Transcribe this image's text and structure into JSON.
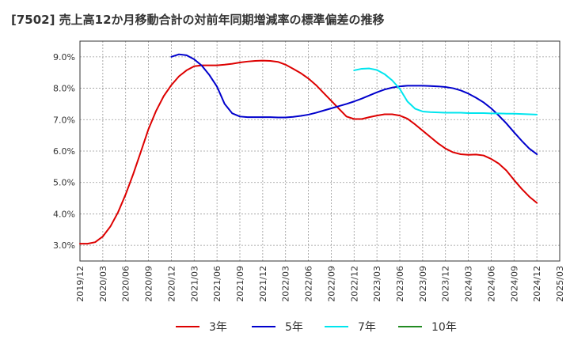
{
  "chart_data": {
    "type": "line",
    "title": "[7502]  売上高12か月移動合計の対前年同期増減率の標準偏差の推移",
    "xlabel": "",
    "ylabel": "",
    "ylim": [
      2.5,
      9.5
    ],
    "y_ticks": [
      "3.0%",
      "4.0%",
      "5.0%",
      "6.0%",
      "7.0%",
      "8.0%",
      "9.0%"
    ],
    "x_ticks": [
      "2019/12",
      "2020/03",
      "2020/06",
      "2020/09",
      "2020/12",
      "2021/03",
      "2021/06",
      "2021/09",
      "2021/12",
      "2022/03",
      "2022/06",
      "2022/09",
      "2022/12",
      "2023/03",
      "2023/06",
      "2023/09",
      "2023/12",
      "2024/03",
      "2024/06",
      "2024/09",
      "2024/12",
      "2025/03"
    ],
    "grid": true,
    "legend_position": "bottom",
    "series": [
      {
        "name": "3年",
        "color": "#dd0000",
        "points": [
          [
            0,
            3.05
          ],
          [
            1,
            3.05
          ],
          [
            2,
            3.1
          ],
          [
            3,
            3.28
          ],
          [
            4,
            3.6
          ],
          [
            5,
            4.05
          ],
          [
            6,
            4.62
          ],
          [
            7,
            5.27
          ],
          [
            8,
            5.98
          ],
          [
            9,
            6.7
          ],
          [
            10,
            7.28
          ],
          [
            11,
            7.75
          ],
          [
            12,
            8.1
          ],
          [
            13,
            8.38
          ],
          [
            14,
            8.57
          ],
          [
            15,
            8.7
          ],
          [
            16,
            8.73
          ],
          [
            17,
            8.73
          ],
          [
            18,
            8.73
          ],
          [
            19,
            8.75
          ],
          [
            20,
            8.78
          ],
          [
            21,
            8.82
          ],
          [
            22,
            8.85
          ],
          [
            23,
            8.87
          ],
          [
            24,
            8.88
          ],
          [
            25,
            8.87
          ],
          [
            26,
            8.84
          ],
          [
            27,
            8.75
          ],
          [
            28,
            8.62
          ],
          [
            29,
            8.48
          ],
          [
            30,
            8.31
          ],
          [
            31,
            8.1
          ],
          [
            32,
            7.85
          ],
          [
            33,
            7.6
          ],
          [
            34,
            7.35
          ],
          [
            35,
            7.1
          ],
          [
            36,
            7.02
          ],
          [
            37,
            7.02
          ],
          [
            38,
            7.08
          ],
          [
            39,
            7.13
          ],
          [
            40,
            7.17
          ],
          [
            41,
            7.17
          ],
          [
            42,
            7.13
          ],
          [
            43,
            7.03
          ],
          [
            44,
            6.85
          ],
          [
            45,
            6.65
          ],
          [
            46,
            6.45
          ],
          [
            47,
            6.25
          ],
          [
            48,
            6.08
          ],
          [
            49,
            5.96
          ],
          [
            50,
            5.9
          ],
          [
            51,
            5.88
          ],
          [
            52,
            5.89
          ],
          [
            53,
            5.86
          ],
          [
            54,
            5.75
          ],
          [
            55,
            5.6
          ],
          [
            56,
            5.38
          ],
          [
            57,
            5.08
          ],
          [
            58,
            4.8
          ],
          [
            59,
            4.55
          ],
          [
            60,
            4.35
          ]
        ]
      },
      {
        "name": "5年",
        "color": "#0000cc",
        "points": [
          [
            12,
            9.0
          ],
          [
            13,
            9.08
          ],
          [
            14,
            9.05
          ],
          [
            15,
            8.92
          ],
          [
            16,
            8.72
          ],
          [
            17,
            8.42
          ],
          [
            18,
            8.05
          ],
          [
            19,
            7.5
          ],
          [
            20,
            7.2
          ],
          [
            21,
            7.1
          ],
          [
            22,
            7.08
          ],
          [
            23,
            7.08
          ],
          [
            24,
            7.08
          ],
          [
            25,
            7.08
          ],
          [
            26,
            7.07
          ],
          [
            27,
            7.07
          ],
          [
            28,
            7.09
          ],
          [
            29,
            7.12
          ],
          [
            30,
            7.16
          ],
          [
            31,
            7.22
          ],
          [
            32,
            7.29
          ],
          [
            33,
            7.36
          ],
          [
            34,
            7.43
          ],
          [
            35,
            7.5
          ],
          [
            36,
            7.58
          ],
          [
            37,
            7.67
          ],
          [
            38,
            7.77
          ],
          [
            39,
            7.87
          ],
          [
            40,
            7.96
          ],
          [
            41,
            8.02
          ],
          [
            42,
            8.06
          ],
          [
            43,
            8.08
          ],
          [
            44,
            8.08
          ],
          [
            45,
            8.08
          ],
          [
            46,
            8.07
          ],
          [
            47,
            8.06
          ],
          [
            48,
            8.04
          ],
          [
            49,
            8.0
          ],
          [
            50,
            7.93
          ],
          [
            51,
            7.83
          ],
          [
            52,
            7.7
          ],
          [
            53,
            7.55
          ],
          [
            54,
            7.36
          ],
          [
            55,
            7.13
          ],
          [
            56,
            6.88
          ],
          [
            57,
            6.6
          ],
          [
            58,
            6.33
          ],
          [
            59,
            6.08
          ],
          [
            60,
            5.9
          ]
        ]
      },
      {
        "name": "7年",
        "color": "#00e5ee",
        "points": [
          [
            36,
            8.57
          ],
          [
            37,
            8.62
          ],
          [
            38,
            8.63
          ],
          [
            39,
            8.58
          ],
          [
            40,
            8.45
          ],
          [
            41,
            8.25
          ],
          [
            42,
            7.98
          ],
          [
            43,
            7.58
          ],
          [
            44,
            7.35
          ],
          [
            45,
            7.26
          ],
          [
            46,
            7.24
          ],
          [
            47,
            7.23
          ],
          [
            48,
            7.22
          ],
          [
            49,
            7.22
          ],
          [
            50,
            7.22
          ],
          [
            51,
            7.21
          ],
          [
            52,
            7.21
          ],
          [
            53,
            7.21
          ],
          [
            54,
            7.2
          ],
          [
            55,
            7.2
          ],
          [
            56,
            7.19
          ],
          [
            57,
            7.19
          ],
          [
            58,
            7.18
          ],
          [
            59,
            7.17
          ],
          [
            60,
            7.16
          ]
        ]
      },
      {
        "name": "10年",
        "color": "#228b22",
        "points": []
      }
    ]
  }
}
